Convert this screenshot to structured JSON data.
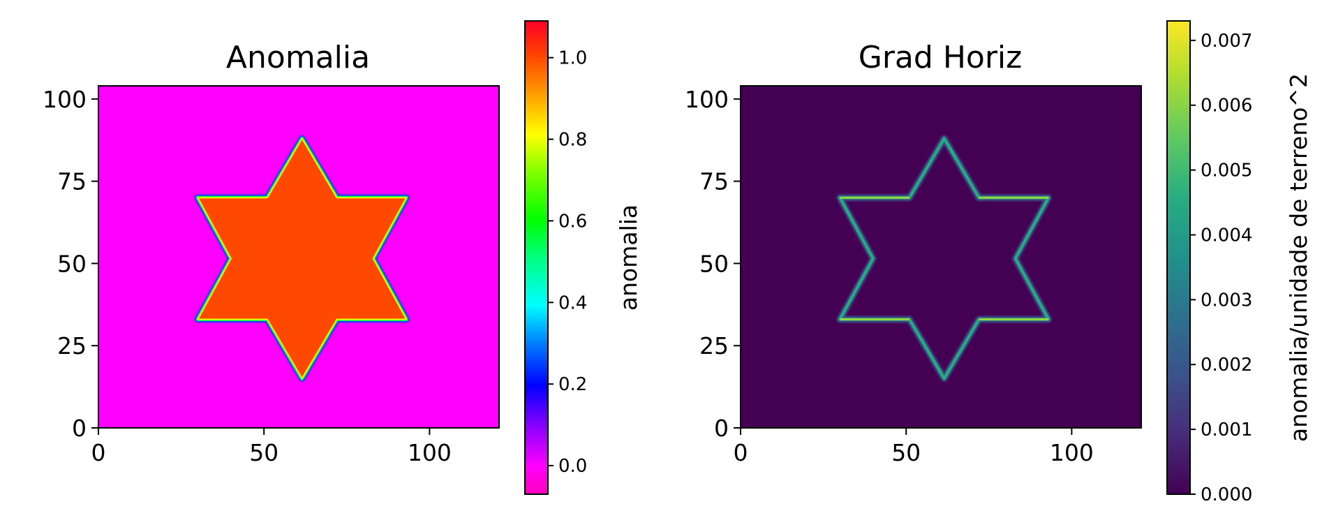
{
  "chart_data": [
    {
      "type": "heatmap",
      "title": "Anomalia",
      "xlabel": "",
      "ylabel": "",
      "xlim": [
        0,
        121
      ],
      "ylim": [
        0,
        104
      ],
      "x_ticks": [
        0,
        50,
        100
      ],
      "y_ticks": [
        0,
        25,
        50,
        75,
        100
      ],
      "x_tick_labels": [
        "0",
        "50",
        "100"
      ],
      "y_tick_labels": [
        "0",
        "25",
        "50",
        "75",
        "100"
      ],
      "colormap": "gist_rainbow_r",
      "background_value": 0.0,
      "shape": "six-pointed star",
      "star": {
        "center": [
          61.5,
          51.5
        ],
        "outer_vertices": [
          [
            61.5,
            88
          ],
          [
            93,
            70
          ],
          [
            93,
            33
          ],
          [
            61.5,
            15
          ],
          [
            30,
            33
          ],
          [
            30,
            70
          ]
        ],
        "inner_vertices": [
          [
            72,
            70
          ],
          [
            83,
            51.5
          ],
          [
            72,
            33
          ],
          [
            51,
            33
          ],
          [
            40,
            51.5
          ],
          [
            51,
            70
          ]
        ]
      },
      "inside_value": 1.0,
      "colorbar": {
        "label": "anomalia",
        "range": [
          -0.07,
          1.09
        ],
        "ticks": [
          0.0,
          0.2,
          0.4,
          0.6,
          0.8,
          1.0
        ],
        "tick_labels": [
          "0.0",
          "0.2",
          "0.4",
          "0.6",
          "0.8",
          "1.0"
        ]
      }
    },
    {
      "type": "heatmap",
      "title": "Grad Horiz",
      "xlabel": "",
      "ylabel": "",
      "xlim": [
        0,
        121
      ],
      "ylim": [
        0,
        104
      ],
      "x_ticks": [
        0,
        50,
        100
      ],
      "y_ticks": [
        0,
        25,
        50,
        75,
        100
      ],
      "x_tick_labels": [
        "0",
        "50",
        "100"
      ],
      "y_tick_labels": [
        "0",
        "25",
        "50",
        "75",
        "100"
      ],
      "colormap": "viridis",
      "background_value": 0.0,
      "edge_value": 0.0045,
      "edge_max_value": 0.0072,
      "shape": "six-pointed star outline",
      "colorbar": {
        "label": "anomalia/unidade de terreno^2",
        "range": [
          0.0,
          0.0073
        ],
        "ticks": [
          0.0,
          0.001,
          0.002,
          0.003,
          0.004,
          0.005,
          0.006,
          0.007
        ],
        "tick_labels": [
          "0.000",
          "0.001",
          "0.002",
          "0.003",
          "0.004",
          "0.005",
          "0.006",
          "0.007"
        ]
      }
    }
  ]
}
